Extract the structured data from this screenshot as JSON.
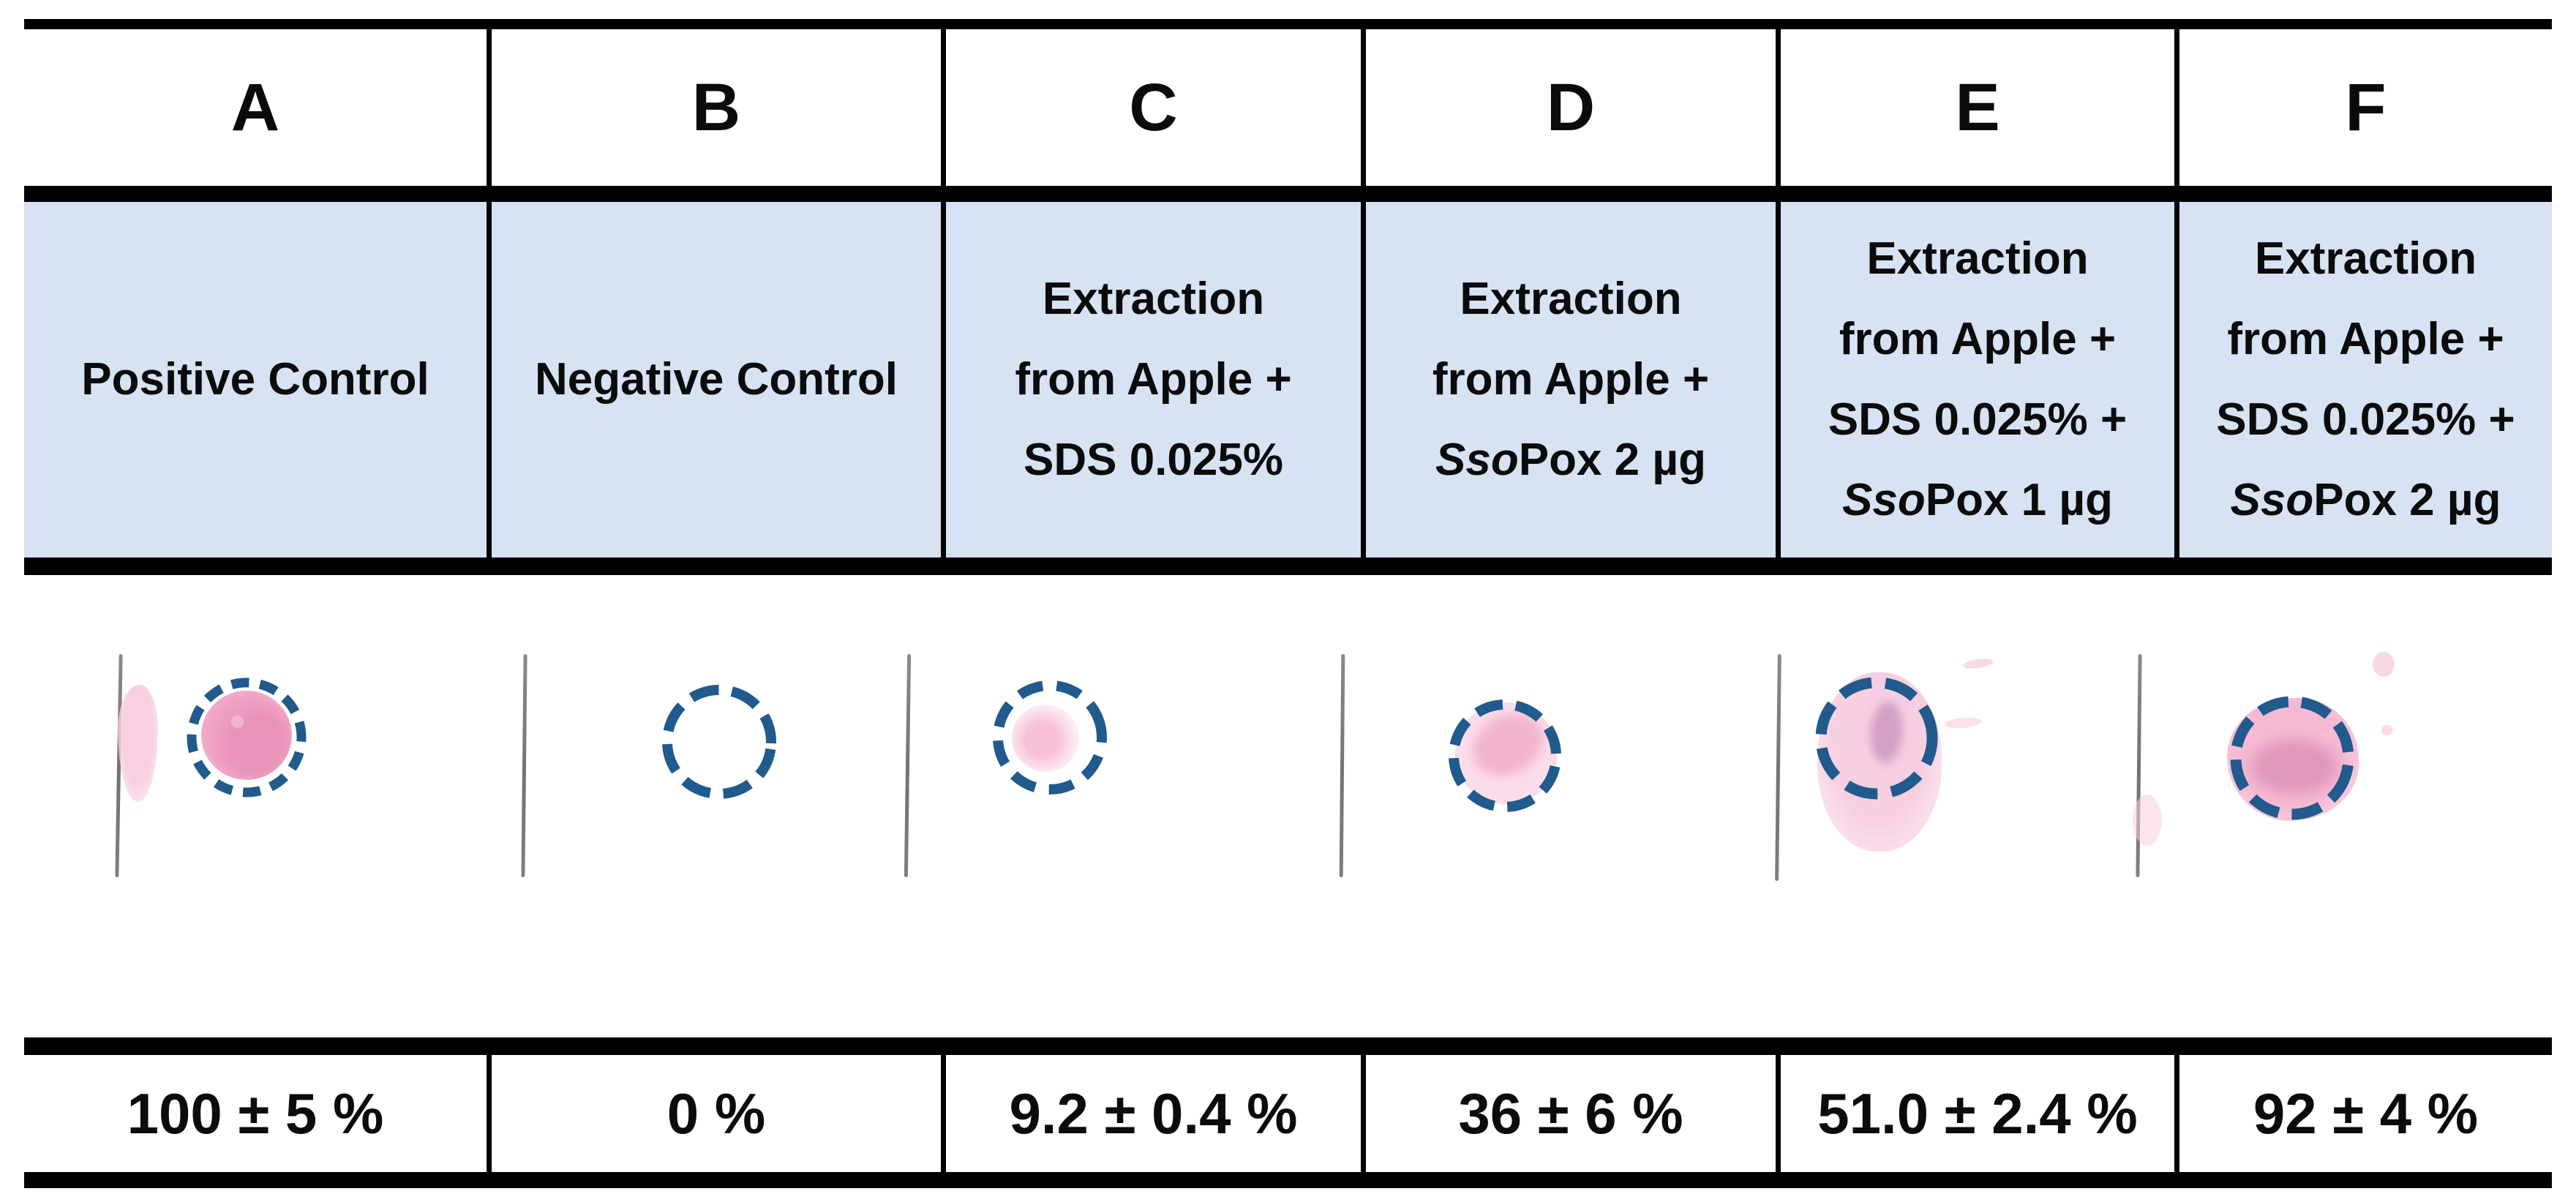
{
  "figure": {
    "colors": {
      "header_bg": "#d7e2f3",
      "rule": "#000000",
      "circle_stroke": "#215a8c",
      "strip_line": "#6e6762",
      "spot_strong_pink": "#efa2c4",
      "spot_light_pink": "#f8d0e2"
    },
    "columns": [
      {
        "letter": "A",
        "description_lines": [
          [
            {
              "t": "Positive Control"
            }
          ]
        ],
        "result": "100 ± 5 %",
        "blot": {
          "outline": "dashed-circle",
          "signal": "strong-pink-spot"
        }
      },
      {
        "letter": "B",
        "description_lines": [
          [
            {
              "t": "Negative Control"
            }
          ]
        ],
        "result": "0 %",
        "blot": {
          "outline": "dashed-circle",
          "signal": "no-spot"
        }
      },
      {
        "letter": "C",
        "description_lines": [
          [
            {
              "t": "Extraction"
            }
          ],
          [
            {
              "t": "from Apple +"
            }
          ],
          [
            {
              "t": "SDS 0.025%"
            }
          ]
        ],
        "result": "9.2 ± 0.4 %",
        "blot": {
          "outline": "dashed-circle",
          "signal": "faint-pink-spot"
        }
      },
      {
        "letter": "D",
        "description_lines": [
          [
            {
              "t": "Extraction"
            }
          ],
          [
            {
              "t": "from Apple +"
            }
          ],
          [
            {
              "t": "Sso",
              "i": true
            },
            {
              "t": "Pox 2 µg"
            }
          ]
        ],
        "result": "36 ± 6 %",
        "blot": {
          "outline": "dashed-circle",
          "signal": "weak-pink-spot"
        }
      },
      {
        "letter": "E",
        "description_lines": [
          [
            {
              "t": "Extraction"
            }
          ],
          [
            {
              "t": "from Apple +"
            }
          ],
          [
            {
              "t": "SDS 0.025% +"
            }
          ],
          [
            {
              "t": "Sso",
              "i": true
            },
            {
              "t": "Pox 1 µg"
            }
          ]
        ],
        "result": "51.0 ± 2.4 %",
        "blot": {
          "outline": "dashed-circle",
          "signal": "moderate-pink-spot"
        }
      },
      {
        "letter": "F",
        "description_lines": [
          [
            {
              "t": "Extraction"
            }
          ],
          [
            {
              "t": "from Apple +"
            }
          ],
          [
            {
              "t": "SDS 0.025% +"
            }
          ],
          [
            {
              "t": "Sso",
              "i": true
            },
            {
              "t": "Pox 2 µg"
            }
          ]
        ],
        "result": "92 ± 4 %",
        "blot": {
          "outline": "dashed-circle",
          "signal": "strong-pink-spot"
        }
      }
    ]
  }
}
